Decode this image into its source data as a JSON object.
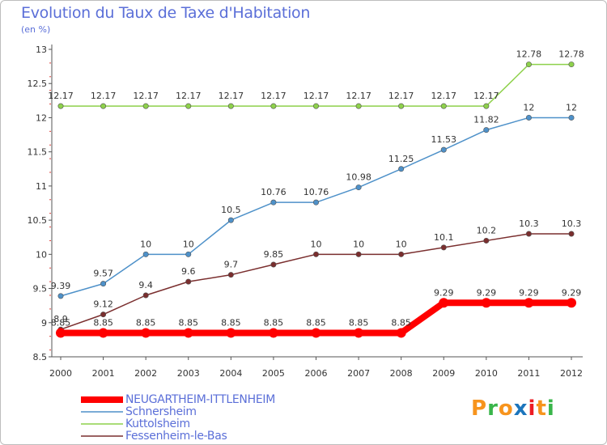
{
  "header": {
    "title": "Evolution du Taux de Taxe d'Habitation",
    "subtitle": "(en %)"
  },
  "logo": {
    "text": "Proxiti",
    "letter_colors": [
      "#f7941d",
      "#39b54a",
      "#f7941d",
      "#1c75bc",
      "#ed1c24",
      "#f7941d",
      "#39b54a"
    ]
  },
  "chart_data": {
    "type": "line",
    "x": [
      2000,
      2001,
      2002,
      2003,
      2004,
      2005,
      2006,
      2007,
      2008,
      2009,
      2010,
      2011,
      2012
    ],
    "ylim": [
      8.5,
      13
    ],
    "yticks": [
      8.5,
      9,
      9.5,
      10,
      10.5,
      11,
      11.5,
      12,
      12.5,
      13
    ],
    "grid": false,
    "legend_position": "bottom-left",
    "series": [
      {
        "name": "NEUGARTHEIM-ITTLENHEIM",
        "color": "#ff0000",
        "values": [
          8.85,
          8.85,
          8.85,
          8.85,
          8.85,
          8.85,
          8.85,
          8.85,
          8.85,
          9.29,
          9.29,
          9.29,
          9.29
        ],
        "labels": [
          "8.85",
          "8.85",
          "8.85",
          "8.85",
          "8.85",
          "8.85",
          "8.85",
          "8.85",
          "8.85",
          "9.29",
          "9.29",
          "9.29",
          "9.29"
        ]
      },
      {
        "name": "Schnersheim",
        "color": "#4e91c9",
        "values": [
          9.39,
          9.57,
          10,
          10,
          10.5,
          10.76,
          10.76,
          10.98,
          11.25,
          11.53,
          11.82,
          12,
          12
        ],
        "labels": [
          "9.39",
          "9.57",
          "10",
          "10",
          "10.5",
          "10.76",
          "10.76",
          "10.98",
          "11.25",
          "11.53",
          "11.82",
          "12",
          "12"
        ]
      },
      {
        "name": "Kuttolsheim",
        "color": "#8ed14b",
        "values": [
          12.17,
          12.17,
          12.17,
          12.17,
          12.17,
          12.17,
          12.17,
          12.17,
          12.17,
          12.17,
          12.17,
          12.78,
          12.78
        ],
        "labels": [
          "12.17",
          "12.17",
          "12.17",
          "12.17",
          "12.17",
          "12.17",
          "12.17",
          "12.17",
          "12.17",
          "12.17",
          "12.17",
          "12.78",
          "12.78"
        ]
      },
      {
        "name": "Fessenheim-le-Bas",
        "color": "#7a2e2e",
        "values": [
          8.9,
          9.12,
          9.4,
          9.6,
          9.7,
          9.85,
          10,
          10,
          10,
          10.1,
          10.2,
          10.3,
          10.3
        ],
        "labels": [
          "8.9",
          "9.12",
          "9.4",
          "9.6",
          "9.7",
          "9.85",
          "10",
          "10",
          "10",
          "10.1",
          "10.2",
          "10.3",
          "10.3"
        ]
      }
    ]
  }
}
